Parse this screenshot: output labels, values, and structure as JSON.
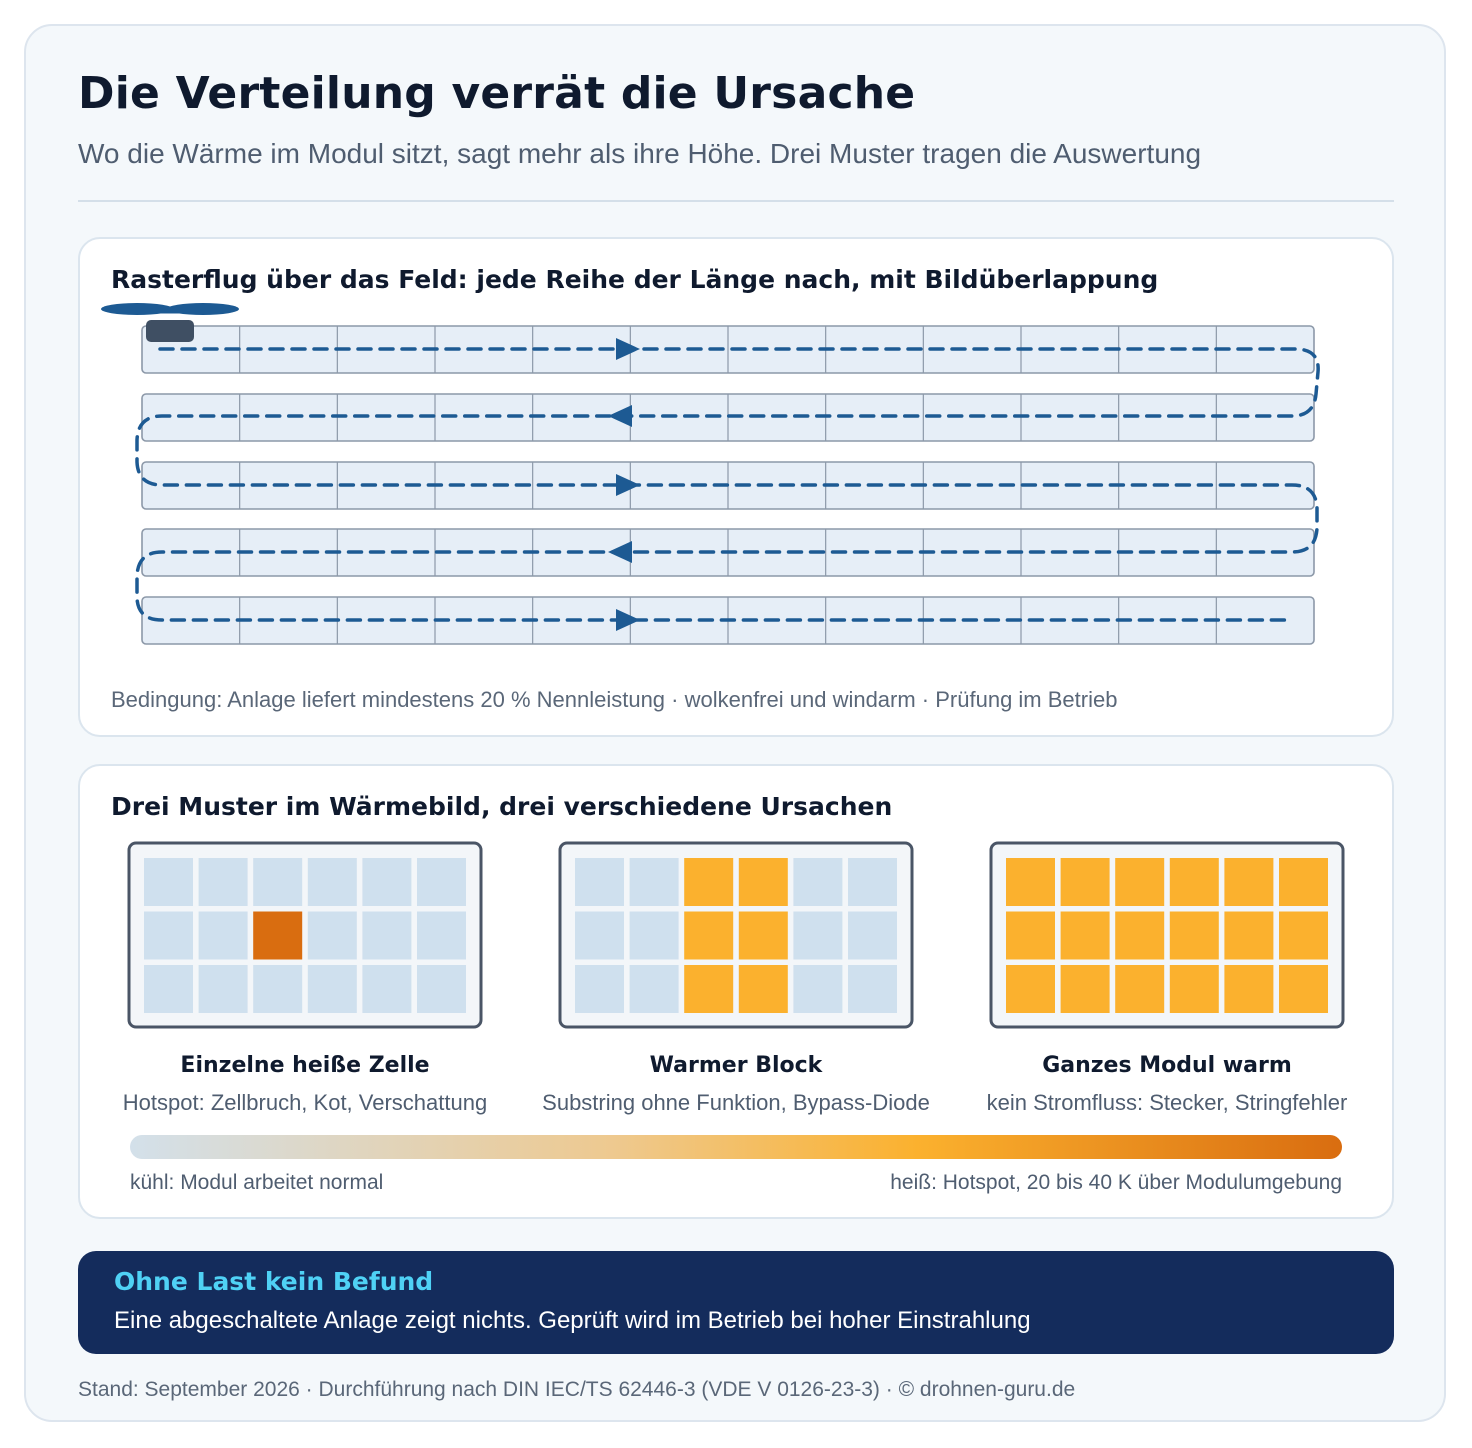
{
  "header": {
    "title": "Die Verteilung verrät die Ursache",
    "subtitle": "Wo die Wärme im Modul sitzt, sagt mehr als ihre Höhe. Drei Muster tragen die Auswertung"
  },
  "flight_panel": {
    "title": "Rasterflug über das Feld: jede Reihe der Länge nach, mit Bildüberlappung",
    "condition": "Bedingung: Anlage liefert mindestens 20 % Nennleistung · wolkenfrei und windarm · Prüfung im Betrieb",
    "rows": 5,
    "modules_per_row": 12
  },
  "patterns_panel": {
    "title": "Drei Muster im Wärmebild, drei verschiedene Ursachen",
    "patterns": [
      {
        "label": "Einzelne heiße Zelle",
        "description": "Hotspot: Zellbruch, Kot, Verschattung"
      },
      {
        "label": "Warmer Block",
        "description": "Substring ohne Funktion, Bypass-Diode"
      },
      {
        "label": "Ganzes Modul warm",
        "description": "kein Stromfluss: Stecker, Stringfehler"
      }
    ],
    "scale": {
      "cool_label": "kühl: Modul arbeitet normal",
      "hot_label": "heiß: Hotspot, 20 bis 40 K über Modulumgebung"
    }
  },
  "banner": {
    "title": "Ohne Last kein Befund",
    "text": "Eine abgeschaltete Anlage zeigt nichts. Geprüft wird im Betrieb bei hoher Einstrahlung"
  },
  "footer": {
    "text": "Stand: September 2026 · Durchführung nach DIN IEC/TS 62446-3 (VDE V 0126-23-3) · © drohnen-guru.de"
  },
  "colors": {
    "cell_cool": "#cfe0ee",
    "cell_hot": "#d96d10",
    "cell_warm": "#fbb12e",
    "path": "#1d5a93",
    "module_fill": "#e6eef7",
    "module_stroke": "#8c98a8",
    "banner_bg": "#142c5c",
    "banner_accent": "#4fd1f5"
  }
}
